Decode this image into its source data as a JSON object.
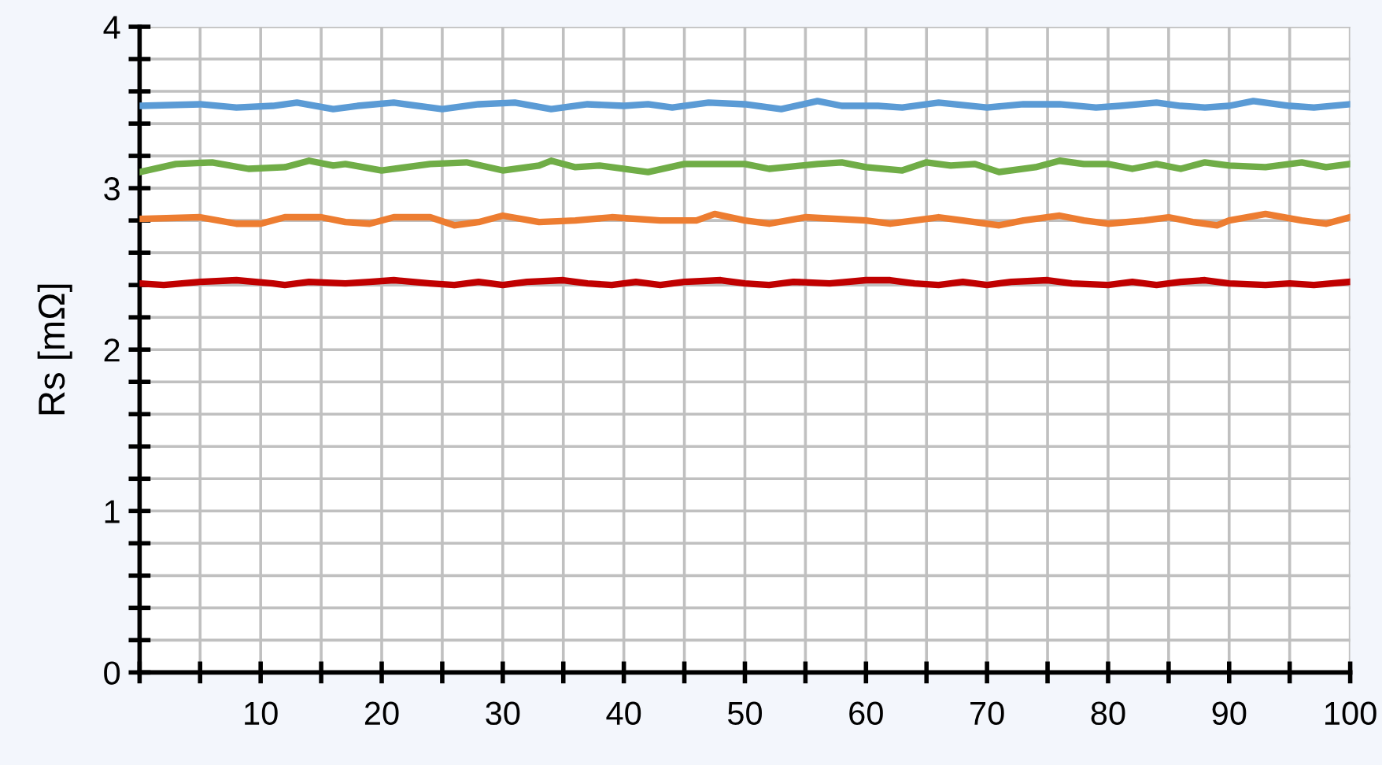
{
  "chart_data": {
    "type": "line",
    "ylabel": "Rs [mΩ]",
    "xlim": [
      0,
      100
    ],
    "ylim": [
      0,
      4
    ],
    "xticks": [
      {
        "value": 0,
        "label": null
      },
      {
        "value": 5,
        "label": null
      },
      10,
      {
        "value": 15,
        "label": null
      },
      20,
      {
        "value": 25,
        "label": null
      },
      30,
      {
        "value": 35,
        "label": null
      },
      40,
      {
        "value": 45,
        "label": null
      },
      50,
      {
        "value": 55,
        "label": null
      },
      60,
      {
        "value": 65,
        "label": null
      },
      70,
      {
        "value": 75,
        "label": null
      },
      80,
      {
        "value": 85,
        "label": null
      },
      90,
      {
        "value": 95,
        "label": null
      },
      100
    ],
    "yticks": [
      0,
      {
        "value": 0.2,
        "label": null
      },
      {
        "value": 0.4,
        "label": null
      },
      {
        "value": 0.6,
        "label": null
      },
      {
        "value": 0.8,
        "label": null
      },
      1,
      {
        "value": 1.2,
        "label": null
      },
      {
        "value": 1.4,
        "label": null
      },
      {
        "value": 1.6,
        "label": null
      },
      {
        "value": 1.8,
        "label": null
      },
      2,
      {
        "value": 2.2,
        "label": null
      },
      {
        "value": 2.4,
        "label": null
      },
      {
        "value": 2.6,
        "label": null
      },
      {
        "value": 2.8,
        "label": null
      },
      3,
      {
        "value": 3.2,
        "label": null
      },
      {
        "value": 3.4,
        "label": null
      },
      {
        "value": 3.6,
        "label": null
      },
      {
        "value": 3.8,
        "label": null
      },
      4
    ],
    "grid": true,
    "marker": "none",
    "line_style": "solid",
    "series": [
      {
        "color": "#5b9bd5",
        "x": [
          0,
          5,
          8,
          11,
          13,
          16,
          18,
          21,
          25,
          28,
          31,
          34,
          37,
          40,
          42,
          44,
          47,
          50,
          53,
          56,
          58,
          61,
          63,
          66,
          70,
          73,
          76,
          79,
          81,
          84,
          86,
          88,
          90,
          92,
          95,
          97,
          100
        ],
        "values": [
          3.51,
          3.52,
          3.5,
          3.51,
          3.53,
          3.49,
          3.51,
          3.53,
          3.49,
          3.52,
          3.53,
          3.49,
          3.52,
          3.51,
          3.52,
          3.5,
          3.53,
          3.52,
          3.49,
          3.54,
          3.51,
          3.51,
          3.5,
          3.53,
          3.5,
          3.52,
          3.52,
          3.5,
          3.51,
          3.53,
          3.51,
          3.5,
          3.51,
          3.54,
          3.51,
          3.5,
          3.52
        ]
      },
      {
        "color": "#70ad47",
        "x": [
          0,
          3,
          6,
          9,
          12,
          14,
          16,
          17,
          20,
          24,
          27,
          30,
          33,
          34,
          36,
          38,
          42,
          45,
          50,
          52,
          56,
          58,
          60,
          63,
          65,
          67,
          69,
          71,
          74,
          76,
          78,
          80,
          82,
          84,
          86,
          88,
          90,
          93,
          96,
          98,
          100
        ],
        "values": [
          3.1,
          3.15,
          3.16,
          3.12,
          3.13,
          3.17,
          3.14,
          3.15,
          3.11,
          3.15,
          3.16,
          3.11,
          3.14,
          3.17,
          3.13,
          3.14,
          3.1,
          3.15,
          3.15,
          3.12,
          3.15,
          3.16,
          3.13,
          3.11,
          3.16,
          3.14,
          3.15,
          3.1,
          3.13,
          3.17,
          3.15,
          3.15,
          3.12,
          3.15,
          3.12,
          3.16,
          3.14,
          3.13,
          3.16,
          3.13,
          3.15
        ]
      },
      {
        "color": "#ed7d31",
        "x": [
          0,
          5,
          8,
          10,
          12,
          15,
          17,
          19,
          21,
          24,
          26,
          28,
          30,
          33,
          36,
          39,
          43,
          46,
          47.5,
          50,
          52,
          55,
          60,
          62,
          66,
          68,
          71,
          73,
          76,
          78,
          80,
          83,
          85,
          87,
          89,
          90,
          93,
          96,
          98,
          100
        ],
        "values": [
          2.81,
          2.82,
          2.78,
          2.78,
          2.82,
          2.82,
          2.79,
          2.78,
          2.82,
          2.82,
          2.77,
          2.79,
          2.83,
          2.79,
          2.8,
          2.82,
          2.8,
          2.8,
          2.84,
          2.8,
          2.78,
          2.82,
          2.8,
          2.78,
          2.82,
          2.8,
          2.77,
          2.8,
          2.83,
          2.8,
          2.78,
          2.8,
          2.82,
          2.79,
          2.77,
          2.8,
          2.84,
          2.8,
          2.78,
          2.82
        ]
      },
      {
        "color": "#c00000",
        "x": [
          0,
          2,
          5,
          8,
          11,
          12,
          14,
          17,
          19,
          21,
          24,
          26,
          28,
          30,
          32,
          35,
          37,
          39,
          41,
          43,
          45,
          48,
          50,
          52,
          54,
          57,
          60,
          62,
          64,
          66,
          68,
          70,
          72,
          75,
          77,
          80,
          82,
          84,
          86,
          88,
          90,
          93,
          95,
          97,
          100
        ],
        "values": [
          2.41,
          2.4,
          2.42,
          2.43,
          2.41,
          2.4,
          2.42,
          2.41,
          2.42,
          2.43,
          2.41,
          2.4,
          2.42,
          2.4,
          2.42,
          2.43,
          2.41,
          2.4,
          2.42,
          2.4,
          2.42,
          2.43,
          2.41,
          2.4,
          2.42,
          2.41,
          2.43,
          2.43,
          2.41,
          2.4,
          2.42,
          2.4,
          2.42,
          2.43,
          2.41,
          2.4,
          2.42,
          2.4,
          2.42,
          2.43,
          2.41,
          2.4,
          2.41,
          2.4,
          2.42
        ]
      }
    ]
  }
}
